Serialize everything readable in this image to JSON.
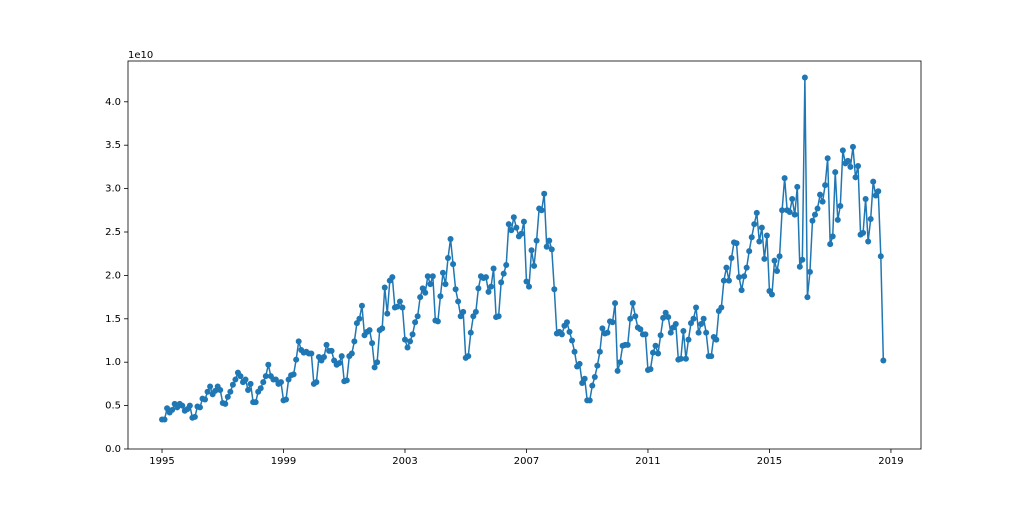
{
  "chart_data": {
    "type": "line",
    "y_offset_label": "1e10",
    "color": "#1f77b4",
    "x": [
      "1995-01",
      "1995-02",
      "1995-03",
      "1995-04",
      "1995-05",
      "1995-06",
      "1995-07",
      "1995-08",
      "1995-09",
      "1995-10",
      "1995-11",
      "1995-12",
      "1996-01",
      "1996-02",
      "1996-03",
      "1996-04",
      "1996-05",
      "1996-06",
      "1996-07",
      "1996-08",
      "1996-09",
      "1996-10",
      "1996-11",
      "1996-12",
      "1997-01",
      "1997-02",
      "1997-03",
      "1997-04",
      "1997-05",
      "1997-06",
      "1997-07",
      "1997-08",
      "1997-09",
      "1997-10",
      "1997-11",
      "1997-12",
      "1998-01",
      "1998-02",
      "1998-03",
      "1998-04",
      "1998-05",
      "1998-06",
      "1998-07",
      "1998-08",
      "1998-09",
      "1998-10",
      "1998-11",
      "1998-12",
      "1999-01",
      "1999-02",
      "1999-03",
      "1999-04",
      "1999-05",
      "1999-06",
      "1999-07",
      "1999-08",
      "1999-09",
      "1999-10",
      "1999-11",
      "1999-12",
      "2000-01",
      "2000-02",
      "2000-03",
      "2000-04",
      "2000-05",
      "2000-06",
      "2000-07",
      "2000-08",
      "2000-09",
      "2000-10",
      "2000-11",
      "2000-12",
      "2001-01",
      "2001-02",
      "2001-03",
      "2001-04",
      "2001-05",
      "2001-06",
      "2001-07",
      "2001-08",
      "2001-09",
      "2001-10",
      "2001-11",
      "2001-12",
      "2002-01",
      "2002-02",
      "2002-03",
      "2002-04",
      "2002-05",
      "2002-06",
      "2002-07",
      "2002-08",
      "2002-09",
      "2002-10",
      "2002-11",
      "2002-12",
      "2003-01",
      "2003-02",
      "2003-03",
      "2003-04",
      "2003-05",
      "2003-06",
      "2003-07",
      "2003-08",
      "2003-09",
      "2003-10",
      "2003-11",
      "2003-12",
      "2004-01",
      "2004-02",
      "2004-03",
      "2004-04",
      "2004-05",
      "2004-06",
      "2004-07",
      "2004-08",
      "2004-09",
      "2004-10",
      "2004-11",
      "2004-12",
      "2005-01",
      "2005-02",
      "2005-03",
      "2005-04",
      "2005-05",
      "2005-06",
      "2005-07",
      "2005-08",
      "2005-09",
      "2005-10",
      "2005-11",
      "2005-12",
      "2006-01",
      "2006-02",
      "2006-03",
      "2006-04",
      "2006-05",
      "2006-06",
      "2006-07",
      "2006-08",
      "2006-09",
      "2006-10",
      "2006-11",
      "2006-12",
      "2007-01",
      "2007-02",
      "2007-03",
      "2007-04",
      "2007-05",
      "2007-06",
      "2007-07",
      "2007-08",
      "2007-09",
      "2007-10",
      "2007-11",
      "2007-12",
      "2008-01",
      "2008-02",
      "2008-03",
      "2008-04",
      "2008-05",
      "2008-06",
      "2008-07",
      "2008-08",
      "2008-09",
      "2008-10",
      "2008-11",
      "2008-12",
      "2009-01",
      "2009-02",
      "2009-03",
      "2009-04",
      "2009-05",
      "2009-06",
      "2009-07",
      "2009-08",
      "2009-09",
      "2009-10",
      "2009-11",
      "2009-12",
      "2010-01",
      "2010-02",
      "2010-03",
      "2010-04",
      "2010-05",
      "2010-06",
      "2010-07",
      "2010-08",
      "2010-09",
      "2010-10",
      "2010-11",
      "2010-12",
      "2011-01",
      "2011-02",
      "2011-03",
      "2011-04",
      "2011-05",
      "2011-06",
      "2011-07",
      "2011-08",
      "2011-09",
      "2011-10",
      "2011-11",
      "2011-12",
      "2012-01",
      "2012-02",
      "2012-03",
      "2012-04",
      "2012-05",
      "2012-06",
      "2012-07",
      "2012-08",
      "2012-09",
      "2012-10",
      "2012-11",
      "2012-12",
      "2013-01",
      "2013-02",
      "2013-03",
      "2013-04",
      "2013-05",
      "2013-06",
      "2013-07",
      "2013-08",
      "2013-09",
      "2013-10",
      "2013-11",
      "2013-12",
      "2014-01",
      "2014-02",
      "2014-03",
      "2014-04",
      "2014-05",
      "2014-06",
      "2014-07",
      "2014-08",
      "2014-09",
      "2014-10",
      "2014-11",
      "2014-12",
      "2015-01",
      "2015-02",
      "2015-03",
      "2015-04",
      "2015-05",
      "2015-06",
      "2015-07",
      "2015-08",
      "2015-09",
      "2015-10",
      "2015-11",
      "2015-12",
      "2016-01",
      "2016-02",
      "2016-03",
      "2016-04",
      "2016-05",
      "2016-06",
      "2016-07",
      "2016-08",
      "2016-09",
      "2016-10",
      "2016-11",
      "2016-12",
      "2017-01",
      "2017-02",
      "2017-03",
      "2017-04",
      "2017-05",
      "2017-06",
      "2017-07",
      "2017-08",
      "2017-09",
      "2017-10",
      "2017-11",
      "2017-12",
      "2018-01",
      "2018-02",
      "2018-03",
      "2018-04",
      "2018-05",
      "2018-06",
      "2018-07",
      "2018-08",
      "2018-09",
      "2018-10"
    ],
    "values": [
      0.34,
      0.34,
      0.47,
      0.42,
      0.45,
      0.52,
      0.48,
      0.52,
      0.5,
      0.44,
      0.46,
      0.5,
      0.36,
      0.37,
      0.49,
      0.48,
      0.58,
      0.57,
      0.66,
      0.72,
      0.63,
      0.67,
      0.72,
      0.68,
      0.53,
      0.52,
      0.6,
      0.66,
      0.74,
      0.8,
      0.88,
      0.84,
      0.77,
      0.8,
      0.68,
      0.75,
      0.54,
      0.54,
      0.66,
      0.7,
      0.77,
      0.84,
      0.97,
      0.84,
      0.8,
      0.8,
      0.75,
      0.77,
      0.56,
      0.57,
      0.8,
      0.85,
      0.86,
      1.03,
      1.24,
      1.14,
      1.11,
      1.12,
      1.1,
      1.1,
      0.75,
      0.77,
      1.06,
      1.02,
      1.06,
      1.2,
      1.13,
      1.13,
      1.02,
      0.97,
      0.99,
      1.07,
      0.78,
      0.79,
      1.07,
      1.1,
      1.24,
      1.45,
      1.5,
      1.65,
      1.31,
      1.35,
      1.37,
      1.22,
      0.94,
      1.0,
      1.37,
      1.39,
      1.86,
      1.56,
      1.94,
      1.98,
      1.63,
      1.64,
      1.7,
      1.63,
      1.26,
      1.17,
      1.24,
      1.32,
      1.46,
      1.53,
      1.75,
      1.85,
      1.8,
      1.99,
      1.9,
      1.99,
      1.48,
      1.47,
      1.76,
      2.03,
      1.9,
      2.2,
      2.42,
      2.13,
      1.84,
      1.7,
      1.53,
      1.58,
      1.05,
      1.07,
      1.34,
      1.53,
      1.58,
      1.85,
      1.99,
      1.97,
      1.98,
      1.81,
      1.87,
      2.08,
      1.52,
      1.53,
      1.92,
      2.02,
      2.12,
      2.59,
      2.52,
      2.67,
      2.55,
      2.45,
      2.48,
      2.62,
      1.93,
      1.87,
      2.29,
      2.11,
      2.4,
      2.77,
      2.75,
      2.94,
      2.33,
      2.4,
      2.3,
      1.84,
      1.33,
      1.35,
      1.32,
      1.42,
      1.46,
      1.35,
      1.25,
      1.12,
      0.95,
      0.98,
      0.76,
      0.81,
      0.56,
      0.56,
      0.73,
      0.83,
      0.96,
      1.12,
      1.39,
      1.33,
      1.34,
      1.47,
      1.46,
      1.68,
      0.9,
      1.0,
      1.19,
      1.2,
      1.2,
      1.5,
      1.68,
      1.53,
      1.4,
      1.38,
      1.32,
      1.32,
      0.91,
      0.92,
      1.11,
      1.19,
      1.1,
      1.31,
      1.51,
      1.57,
      1.52,
      1.34,
      1.4,
      1.44,
      1.03,
      1.04,
      1.36,
      1.04,
      1.26,
      1.45,
      1.5,
      1.63,
      1.34,
      1.44,
      1.5,
      1.34,
      1.07,
      1.07,
      1.29,
      1.26,
      1.59,
      1.63,
      1.94,
      2.09,
      1.94,
      2.2,
      2.38,
      2.37,
      1.98,
      1.83,
      1.99,
      2.09,
      2.28,
      2.44,
      2.59,
      2.72,
      2.39,
      2.55,
      2.19,
      2.46,
      1.82,
      1.78,
      2.17,
      2.05,
      2.22,
      2.75,
      3.12,
      2.75,
      2.73,
      2.88,
      2.7,
      3.02,
      2.1,
      2.18,
      4.28,
      1.75,
      2.04,
      2.63,
      2.7,
      2.77,
      2.93,
      2.85,
      3.04,
      3.35,
      2.36,
      2.45,
      3.19,
      2.64,
      2.8,
      3.44,
      3.29,
      3.32,
      3.25,
      3.48,
      3.13,
      3.26,
      2.47,
      2.49,
      2.88,
      2.39,
      2.65,
      3.08,
      2.92,
      2.97,
      2.22,
      1.02
    ],
    "xlim": [
      1993.88,
      2019.99
    ],
    "xticks": [
      1995,
      1999,
      2003,
      2007,
      2011,
      2015,
      2019
    ],
    "ylim": [
      0,
      4.47
    ],
    "yticks": [
      {
        "value": 0,
        "label": "0.0"
      },
      0.5,
      {
        "value": 1,
        "label": "1.0"
      },
      1.5,
      {
        "value": 2,
        "label": "2.0"
      },
      2.5,
      {
        "value": 3,
        "label": "3.0"
      },
      3.5,
      {
        "value": 4,
        "label": "4.0"
      }
    ]
  }
}
